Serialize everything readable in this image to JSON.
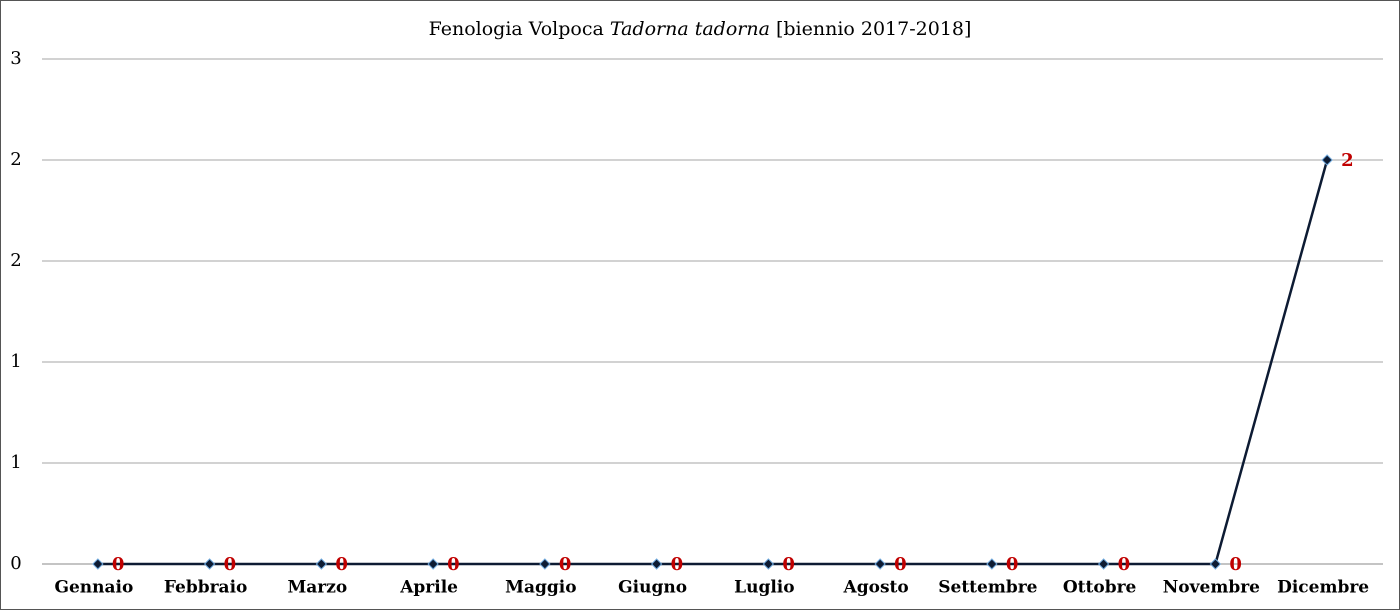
{
  "chart_data": {
    "type": "line",
    "title": [
      "Fenologia Volpoca ",
      "Tadorna tadorna",
      " [biennio 2017-2018]"
    ],
    "categories": [
      "Gennaio",
      "Febbraio",
      "Marzo",
      "Aprile",
      "Maggio",
      "Giugno",
      "Luglio",
      "Agosto",
      "Settembre",
      "Ottobre",
      "Novembre",
      "Dicembre"
    ],
    "values": [
      0,
      0,
      0,
      0,
      0,
      0,
      0,
      0,
      0,
      0,
      0,
      2
    ],
    "color": "#0d1b33",
    "label_color": "#c00000",
    "ylim": [
      0,
      2.5
    ],
    "yticks": [
      0,
      {
        "value": 0.5,
        "label": "1"
      },
      {
        "value": 1,
        "label": "1"
      },
      {
        "value": 1.5,
        "label": "2"
      },
      {
        "value": 2,
        "label": "2"
      },
      {
        "value": 2.5,
        "label": "3"
      }
    ],
    "grid": true
  }
}
